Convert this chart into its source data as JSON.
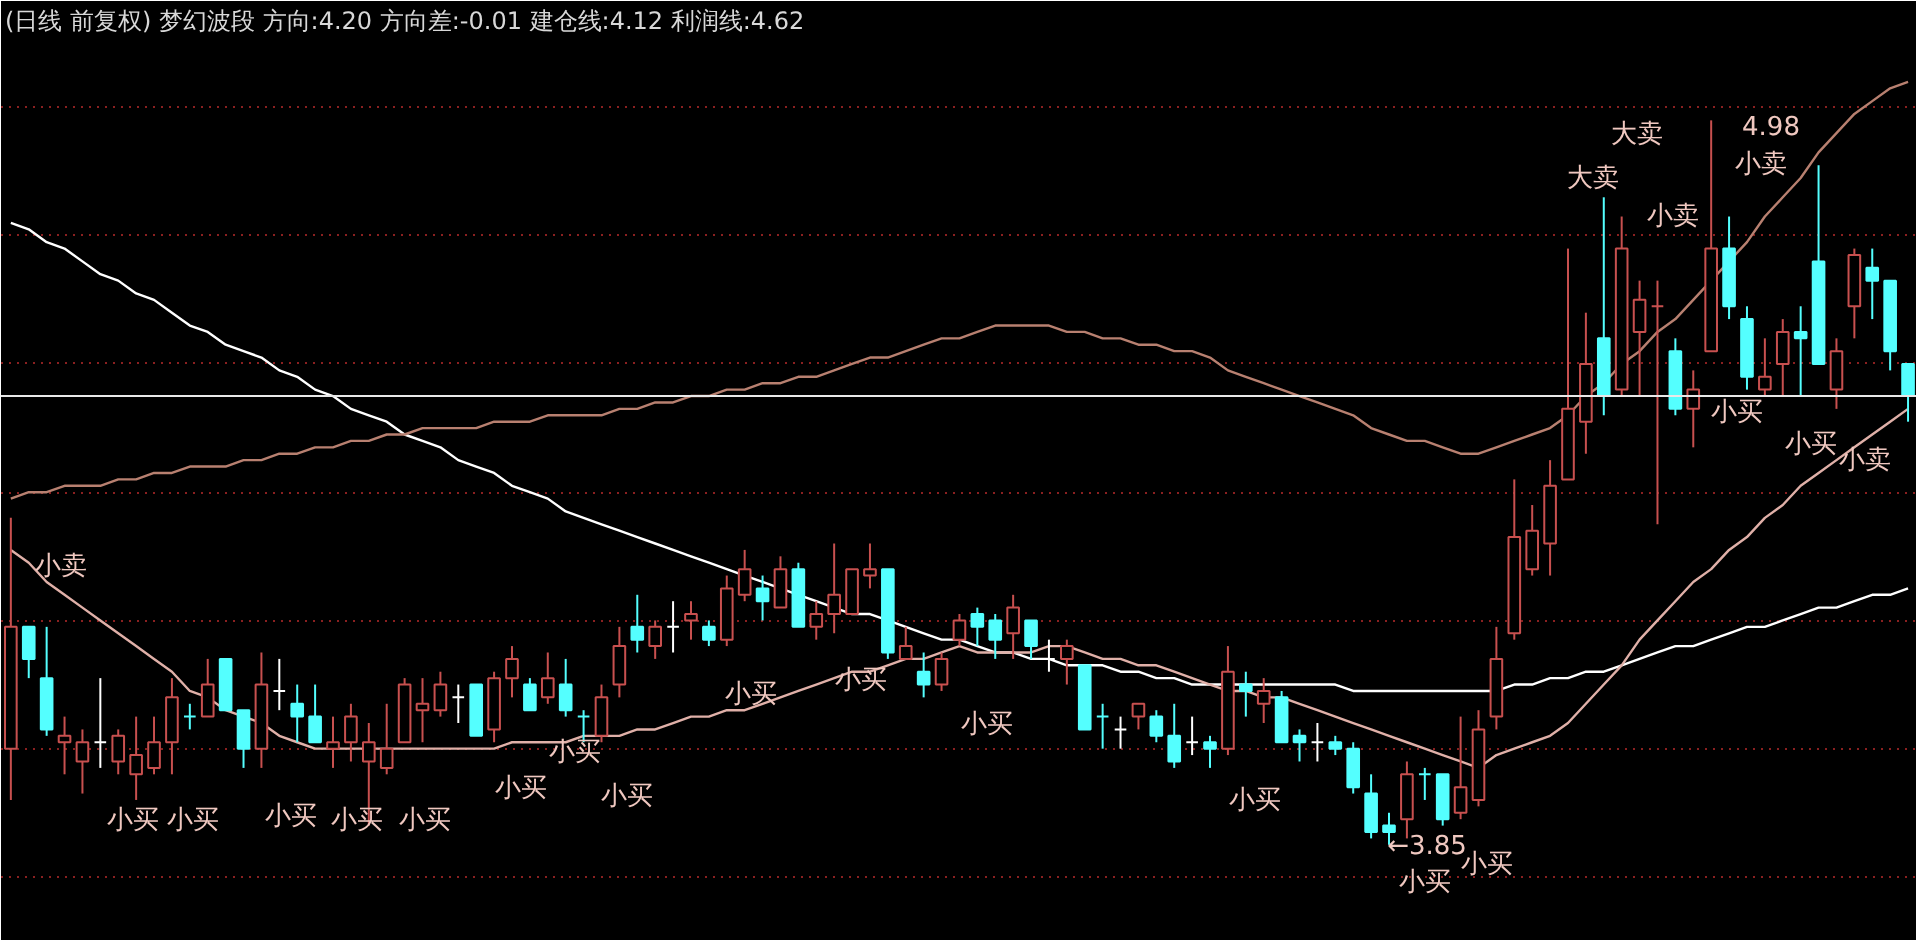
{
  "chart_data": {
    "type": "candlestick",
    "title": "(日线 前复权) 梦幻波段 方向:4.20 方向差:-0.01 建仓线:4.12 利润线:4.62",
    "categories": [
      null,
      null,
      null,
      null,
      null,
      null,
      null,
      null,
      null,
      null,
      null,
      null,
      null,
      null,
      null,
      null,
      null,
      null,
      null,
      null,
      null,
      null,
      null,
      null,
      null,
      null,
      null,
      null,
      null,
      null,
      null,
      null,
      null,
      null,
      null,
      null,
      null,
      null,
      null,
      null,
      null,
      null,
      null,
      null,
      null,
      null,
      null,
      null,
      null,
      null,
      null,
      null,
      null,
      null,
      null,
      null,
      null,
      null,
      null,
      null,
      null,
      null,
      null,
      null,
      null,
      null,
      null,
      null,
      null,
      null,
      null,
      null,
      null,
      null,
      null,
      null,
      null,
      null,
      null,
      null,
      null,
      null,
      null,
      null,
      null,
      null,
      null,
      null,
      null,
      null,
      null,
      null,
      null,
      null,
      null,
      null,
      null,
      null,
      null,
      null,
      null,
      null,
      null,
      null,
      null,
      null,
      null
    ],
    "ohlc": [
      [
        4.0,
        4.36,
        3.92,
        4.19
      ],
      [
        4.19,
        4.19,
        4.11,
        4.14
      ],
      [
        4.11,
        4.19,
        4.02,
        4.03
      ],
      [
        4.01,
        4.05,
        3.96,
        4.02
      ],
      [
        3.98,
        4.03,
        3.93,
        4.01
      ],
      [
        4.01,
        4.11,
        3.97,
        4.01
      ],
      [
        3.98,
        4.03,
        3.96,
        4.02
      ],
      [
        3.96,
        4.05,
        3.92,
        3.99
      ],
      [
        3.97,
        4.05,
        3.96,
        4.01
      ],
      [
        4.01,
        4.11,
        3.96,
        4.08
      ],
      [
        4.05,
        4.07,
        4.03,
        4.05
      ],
      [
        4.05,
        4.14,
        4.05,
        4.1
      ],
      [
        4.14,
        4.14,
        4.06,
        4.06
      ],
      [
        4.06,
        4.06,
        3.97,
        4.0
      ],
      [
        4.0,
        4.15,
        3.97,
        4.1
      ],
      [
        4.09,
        4.14,
        4.06,
        4.09
      ],
      [
        4.07,
        4.1,
        4.01,
        4.05
      ],
      [
        4.05,
        4.1,
        4.01,
        4.01
      ],
      [
        4.0,
        4.05,
        3.97,
        4.01
      ],
      [
        4.01,
        4.07,
        3.98,
        4.05
      ],
      [
        3.98,
        4.04,
        3.88,
        4.01
      ],
      [
        3.97,
        4.07,
        3.96,
        4.0
      ],
      [
        4.01,
        4.11,
        4.01,
        4.1
      ],
      [
        4.06,
        4.11,
        4.01,
        4.07
      ],
      [
        4.06,
        4.12,
        4.05,
        4.1
      ],
      [
        4.08,
        4.1,
        4.04,
        4.08
      ],
      [
        4.1,
        4.1,
        4.02,
        4.02
      ],
      [
        4.03,
        4.12,
        4.01,
        4.11
      ],
      [
        4.11,
        4.16,
        4.08,
        4.14
      ],
      [
        4.1,
        4.11,
        4.06,
        4.06
      ],
      [
        4.08,
        4.15,
        4.07,
        4.11
      ],
      [
        4.1,
        4.14,
        4.05,
        4.06
      ],
      [
        4.05,
        4.06,
        4.01,
        4.05
      ],
      [
        4.02,
        4.1,
        4.01,
        4.08
      ],
      [
        4.1,
        4.19,
        4.08,
        4.16
      ],
      [
        4.19,
        4.24,
        4.15,
        4.17
      ],
      [
        4.16,
        4.2,
        4.14,
        4.19
      ],
      [
        4.19,
        4.23,
        4.15,
        4.19
      ],
      [
        4.2,
        4.23,
        4.17,
        4.21
      ],
      [
        4.19,
        4.2,
        4.16,
        4.17
      ],
      [
        4.17,
        4.27,
        4.16,
        4.25
      ],
      [
        4.24,
        4.31,
        4.23,
        4.28
      ],
      [
        4.25,
        4.27,
        4.2,
        4.23
      ],
      [
        4.22,
        4.3,
        4.22,
        4.28
      ],
      [
        4.28,
        4.29,
        4.19,
        4.19
      ],
      [
        4.19,
        4.23,
        4.17,
        4.21
      ],
      [
        4.21,
        4.32,
        4.18,
        4.24
      ],
      [
        4.21,
        4.28,
        4.21,
        4.28
      ],
      [
        4.27,
        4.32,
        4.25,
        4.28
      ],
      [
        4.28,
        4.28,
        4.14,
        4.15
      ],
      [
        4.14,
        4.19,
        4.14,
        4.16
      ],
      [
        4.12,
        4.15,
        4.08,
        4.1
      ],
      [
        4.1,
        4.15,
        4.09,
        4.14
      ],
      [
        4.17,
        4.21,
        4.16,
        4.2
      ],
      [
        4.21,
        4.22,
        4.16,
        4.19
      ],
      [
        4.2,
        4.21,
        4.14,
        4.17
      ],
      [
        4.18,
        4.24,
        4.14,
        4.22
      ],
      [
        4.2,
        4.2,
        4.14,
        4.16
      ],
      [
        4.14,
        4.17,
        4.12,
        4.14
      ],
      [
        4.14,
        4.17,
        4.1,
        4.16
      ],
      [
        4.13,
        4.13,
        4.03,
        4.03
      ],
      [
        4.05,
        4.07,
        4.0,
        4.05
      ],
      [
        4.03,
        4.05,
        4.0,
        4.03
      ],
      [
        4.05,
        4.07,
        4.03,
        4.07
      ],
      [
        4.05,
        4.06,
        4.01,
        4.02
      ],
      [
        4.02,
        4.07,
        3.97,
        3.98
      ],
      [
        4.01,
        4.05,
        3.99,
        4.01
      ],
      [
        4.01,
        4.02,
        3.97,
        4.0
      ],
      [
        4.0,
        4.16,
        3.99,
        4.12
      ],
      [
        4.1,
        4.12,
        4.05,
        4.09
      ],
      [
        4.07,
        4.11,
        4.04,
        4.09
      ],
      [
        4.08,
        4.09,
        4.01,
        4.01
      ],
      [
        4.02,
        4.03,
        3.98,
        4.01
      ],
      [
        4.01,
        4.04,
        3.98,
        4.01
      ],
      [
        4.01,
        4.02,
        3.99,
        4.0
      ],
      [
        4.0,
        4.01,
        3.93,
        3.94
      ],
      [
        3.93,
        3.96,
        3.86,
        3.87
      ],
      [
        3.88,
        3.9,
        3.85,
        3.87
      ],
      [
        3.89,
        3.98,
        3.86,
        3.96
      ],
      [
        3.96,
        3.97,
        3.92,
        3.96
      ],
      [
        3.96,
        3.96,
        3.88,
        3.89
      ],
      [
        3.9,
        4.05,
        3.89,
        3.94
      ],
      [
        3.92,
        4.06,
        3.91,
        4.03
      ],
      [
        4.05,
        4.19,
        4.03,
        4.14
      ],
      [
        4.18,
        4.42,
        4.17,
        4.33
      ],
      [
        4.28,
        4.38,
        4.27,
        4.34
      ],
      [
        4.32,
        4.45,
        4.27,
        4.41
      ],
      [
        4.42,
        4.78,
        4.42,
        4.53
      ],
      [
        4.51,
        4.68,
        4.46,
        4.6
      ],
      [
        4.64,
        4.86,
        4.52,
        4.55
      ],
      [
        4.56,
        4.83,
        4.55,
        4.78
      ],
      [
        4.65,
        4.73,
        4.55,
        4.7
      ],
      [
        4.69,
        4.73,
        4.35,
        4.69
      ],
      [
        4.62,
        4.64,
        4.52,
        4.53
      ],
      [
        4.53,
        4.59,
        4.47,
        4.56
      ],
      [
        4.62,
        4.98,
        4.62,
        4.78
      ],
      [
        4.78,
        4.83,
        4.67,
        4.69
      ],
      [
        4.67,
        4.69,
        4.56,
        4.58
      ],
      [
        4.56,
        4.64,
        4.55,
        4.58
      ],
      [
        4.6,
        4.67,
        4.55,
        4.65
      ],
      [
        4.65,
        4.69,
        4.55,
        4.64
      ],
      [
        4.76,
        4.91,
        4.6,
        4.6
      ],
      [
        4.56,
        4.64,
        4.53,
        4.62
      ],
      [
        4.69,
        4.78,
        4.64,
        4.77
      ],
      [
        4.75,
        4.78,
        4.67,
        4.73
      ],
      [
        4.73,
        4.73,
        4.59,
        4.62
      ],
      [
        4.6,
        4.6,
        4.51,
        4.55
      ]
    ],
    "colors": [
      "#c8504f",
      "#54ffff",
      "#54ffff",
      "#c8504f",
      "#c8504f",
      "#ffffff",
      "#c8504f",
      "#c8504f",
      "#c8504f",
      "#c8504f",
      "#54ffff",
      "#c8504f",
      "#54ffff",
      "#54ffff",
      "#c8504f",
      "#ffffff",
      "#54ffff",
      "#54ffff",
      "#c8504f",
      "#c8504f",
      "#c8504f",
      "#c8504f",
      "#c8504f",
      "#c8504f",
      "#c8504f",
      "#ffffff",
      "#54ffff",
      "#c8504f",
      "#c8504f",
      "#54ffff",
      "#c8504f",
      "#54ffff",
      "#54ffff",
      "#c8504f",
      "#c8504f",
      "#54ffff",
      "#c8504f",
      "#ffffff",
      "#c8504f",
      "#54ffff",
      "#c8504f",
      "#c8504f",
      "#54ffff",
      "#c8504f",
      "#54ffff",
      "#c8504f",
      "#c8504f",
      "#c8504f",
      "#c8504f",
      "#54ffff",
      "#c8504f",
      "#54ffff",
      "#c8504f",
      "#c8504f",
      "#54ffff",
      "#54ffff",
      "#c8504f",
      "#54ffff",
      "#ffffff",
      "#c8504f",
      "#54ffff",
      "#54ffff",
      "#ffffff",
      "#c8504f",
      "#54ffff",
      "#54ffff",
      "#ffffff",
      "#54ffff",
      "#c8504f",
      "#54ffff",
      "#c8504f",
      "#54ffff",
      "#54ffff",
      "#ffffff",
      "#54ffff",
      "#54ffff",
      "#54ffff",
      "#54ffff",
      "#c8504f",
      "#54ffff",
      "#54ffff",
      "#c8504f",
      "#c8504f",
      "#c8504f",
      "#c8504f",
      "#c8504f",
      "#c8504f",
      "#c8504f",
      "#c8504f",
      "#54ffff",
      "#c8504f",
      "#c8504f",
      "#c8504f",
      "#54ffff",
      "#c8504f",
      "#c8504f",
      "#54ffff",
      "#54ffff",
      "#c8504f",
      "#c8504f",
      "#54ffff",
      "#54ffff",
      "#c8504f",
      "#c8504f",
      "#54ffff",
      "#54ffff",
      "#54ffff"
    ],
    "series": [
      {
        "type": "line",
        "color": "#ffffff",
        "values": [
          4.82,
          4.81,
          4.79,
          4.78,
          4.76,
          4.74,
          4.73,
          4.71,
          4.7,
          4.68,
          4.66,
          4.65,
          4.63,
          4.62,
          4.61,
          4.59,
          4.58,
          4.56,
          4.55,
          4.53,
          4.52,
          4.51,
          4.49,
          4.48,
          4.47,
          4.45,
          4.44,
          4.43,
          4.41,
          4.4,
          4.39,
          4.37,
          4.36,
          4.35,
          4.34,
          4.33,
          4.32,
          4.31,
          4.3,
          4.29,
          4.28,
          4.27,
          4.26,
          4.25,
          4.24,
          4.23,
          4.22,
          4.21,
          4.21,
          4.2,
          4.19,
          4.18,
          4.17,
          4.17,
          4.16,
          4.15,
          4.15,
          4.14,
          4.14,
          4.13,
          4.13,
          4.13,
          4.12,
          4.12,
          4.11,
          4.11,
          4.1,
          4.1,
          4.1,
          4.1,
          4.1,
          4.1,
          4.1,
          4.1,
          4.1,
          4.09,
          4.09,
          4.09,
          4.09,
          4.09,
          4.09,
          4.09,
          4.09,
          4.09,
          4.1,
          4.1,
          4.11,
          4.11,
          4.12,
          4.12,
          4.13,
          4.14,
          4.15,
          4.16,
          4.16,
          4.17,
          4.18,
          4.19,
          4.19,
          4.2,
          4.21,
          4.22,
          4.22,
          4.23,
          4.24,
          4.24,
          4.25
        ]
      },
      {
        "type": "line",
        "color": "#b88070",
        "values": [
          4.39,
          4.4,
          4.4,
          4.41,
          4.41,
          4.41,
          4.42,
          4.42,
          4.43,
          4.43,
          4.44,
          4.44,
          4.44,
          4.45,
          4.45,
          4.46,
          4.46,
          4.47,
          4.47,
          4.48,
          4.48,
          4.49,
          4.49,
          4.5,
          4.5,
          4.5,
          4.5,
          4.51,
          4.51,
          4.51,
          4.52,
          4.52,
          4.52,
          4.52,
          4.53,
          4.53,
          4.54,
          4.54,
          4.55,
          4.55,
          4.56,
          4.56,
          4.57,
          4.57,
          4.58,
          4.58,
          4.59,
          4.6,
          4.61,
          4.61,
          4.62,
          4.63,
          4.64,
          4.64,
          4.65,
          4.66,
          4.66,
          4.66,
          4.66,
          4.65,
          4.65,
          4.64,
          4.64,
          4.63,
          4.63,
          4.62,
          4.62,
          4.61,
          4.59,
          4.58,
          4.57,
          4.56,
          4.55,
          4.54,
          4.53,
          4.52,
          4.5,
          4.49,
          4.48,
          4.48,
          4.47,
          4.46,
          4.46,
          4.47,
          4.48,
          4.49,
          4.5,
          4.52,
          4.55,
          4.57,
          4.6,
          4.62,
          4.65,
          4.67,
          4.7,
          4.73,
          4.76,
          4.79,
          4.83,
          4.86,
          4.89,
          4.93,
          4.96,
          4.99,
          5.01,
          5.03,
          5.04
        ]
      },
      {
        "type": "line",
        "color": "#e0b0a8",
        "values": [
          4.31,
          4.29,
          4.26,
          4.24,
          4.22,
          4.2,
          4.18,
          4.16,
          4.14,
          4.12,
          4.09,
          4.08,
          4.06,
          4.05,
          4.04,
          4.02,
          4.01,
          4.0,
          4.0,
          4.0,
          4.0,
          4.0,
          4.0,
          4.0,
          4.0,
          4.0,
          4.0,
          4.0,
          4.01,
          4.01,
          4.01,
          4.01,
          4.02,
          4.02,
          4.02,
          4.03,
          4.03,
          4.04,
          4.05,
          4.05,
          4.06,
          4.06,
          4.07,
          4.08,
          4.09,
          4.1,
          4.11,
          4.12,
          4.12,
          4.13,
          4.14,
          4.14,
          4.15,
          4.16,
          4.15,
          4.15,
          4.15,
          4.15,
          4.16,
          4.16,
          4.15,
          4.14,
          4.14,
          4.13,
          4.13,
          4.12,
          4.11,
          4.1,
          4.09,
          4.09,
          4.08,
          4.08,
          4.07,
          4.06,
          4.05,
          4.04,
          4.03,
          4.02,
          4.01,
          4.0,
          3.99,
          3.98,
          3.97,
          3.99,
          4.0,
          4.01,
          4.02,
          4.04,
          4.07,
          4.1,
          4.13,
          4.17,
          4.2,
          4.23,
          4.26,
          4.28,
          4.31,
          4.33,
          4.36,
          4.38,
          4.41,
          4.43,
          4.45,
          4.47,
          4.49,
          4.51,
          4.53
        ]
      }
    ],
    "annotations": [
      "小卖",
      "小买",
      "小买",
      "小买",
      "小买",
      "小买",
      "小买",
      "小买",
      "小买",
      "小买",
      "小买",
      "小买",
      "小买",
      "←3.85",
      "小买",
      "小买",
      "大卖",
      "大卖",
      "4.98",
      "小卖",
      "小卖",
      "小买",
      "小买",
      "小卖"
    ],
    "ylim": [
      3.7,
      5.11
    ],
    "yticks": [
      {
        "value": 3.8,
        "label": null
      },
      {
        "value": 4.0,
        "label": null
      },
      {
        "value": 4.2,
        "label": null
      },
      {
        "value": 4.4,
        "label": null
      },
      {
        "value": 4.6,
        "label": null
      },
      {
        "value": 4.8,
        "label": null
      },
      {
        "value": 5.0,
        "label": null
      }
    ],
    "grid": "y",
    "ref_lines": [
      {
        "axis": "y",
        "value": 4.55,
        "color": "#e8e8e8"
      }
    ],
    "tick_labels": false
  }
}
